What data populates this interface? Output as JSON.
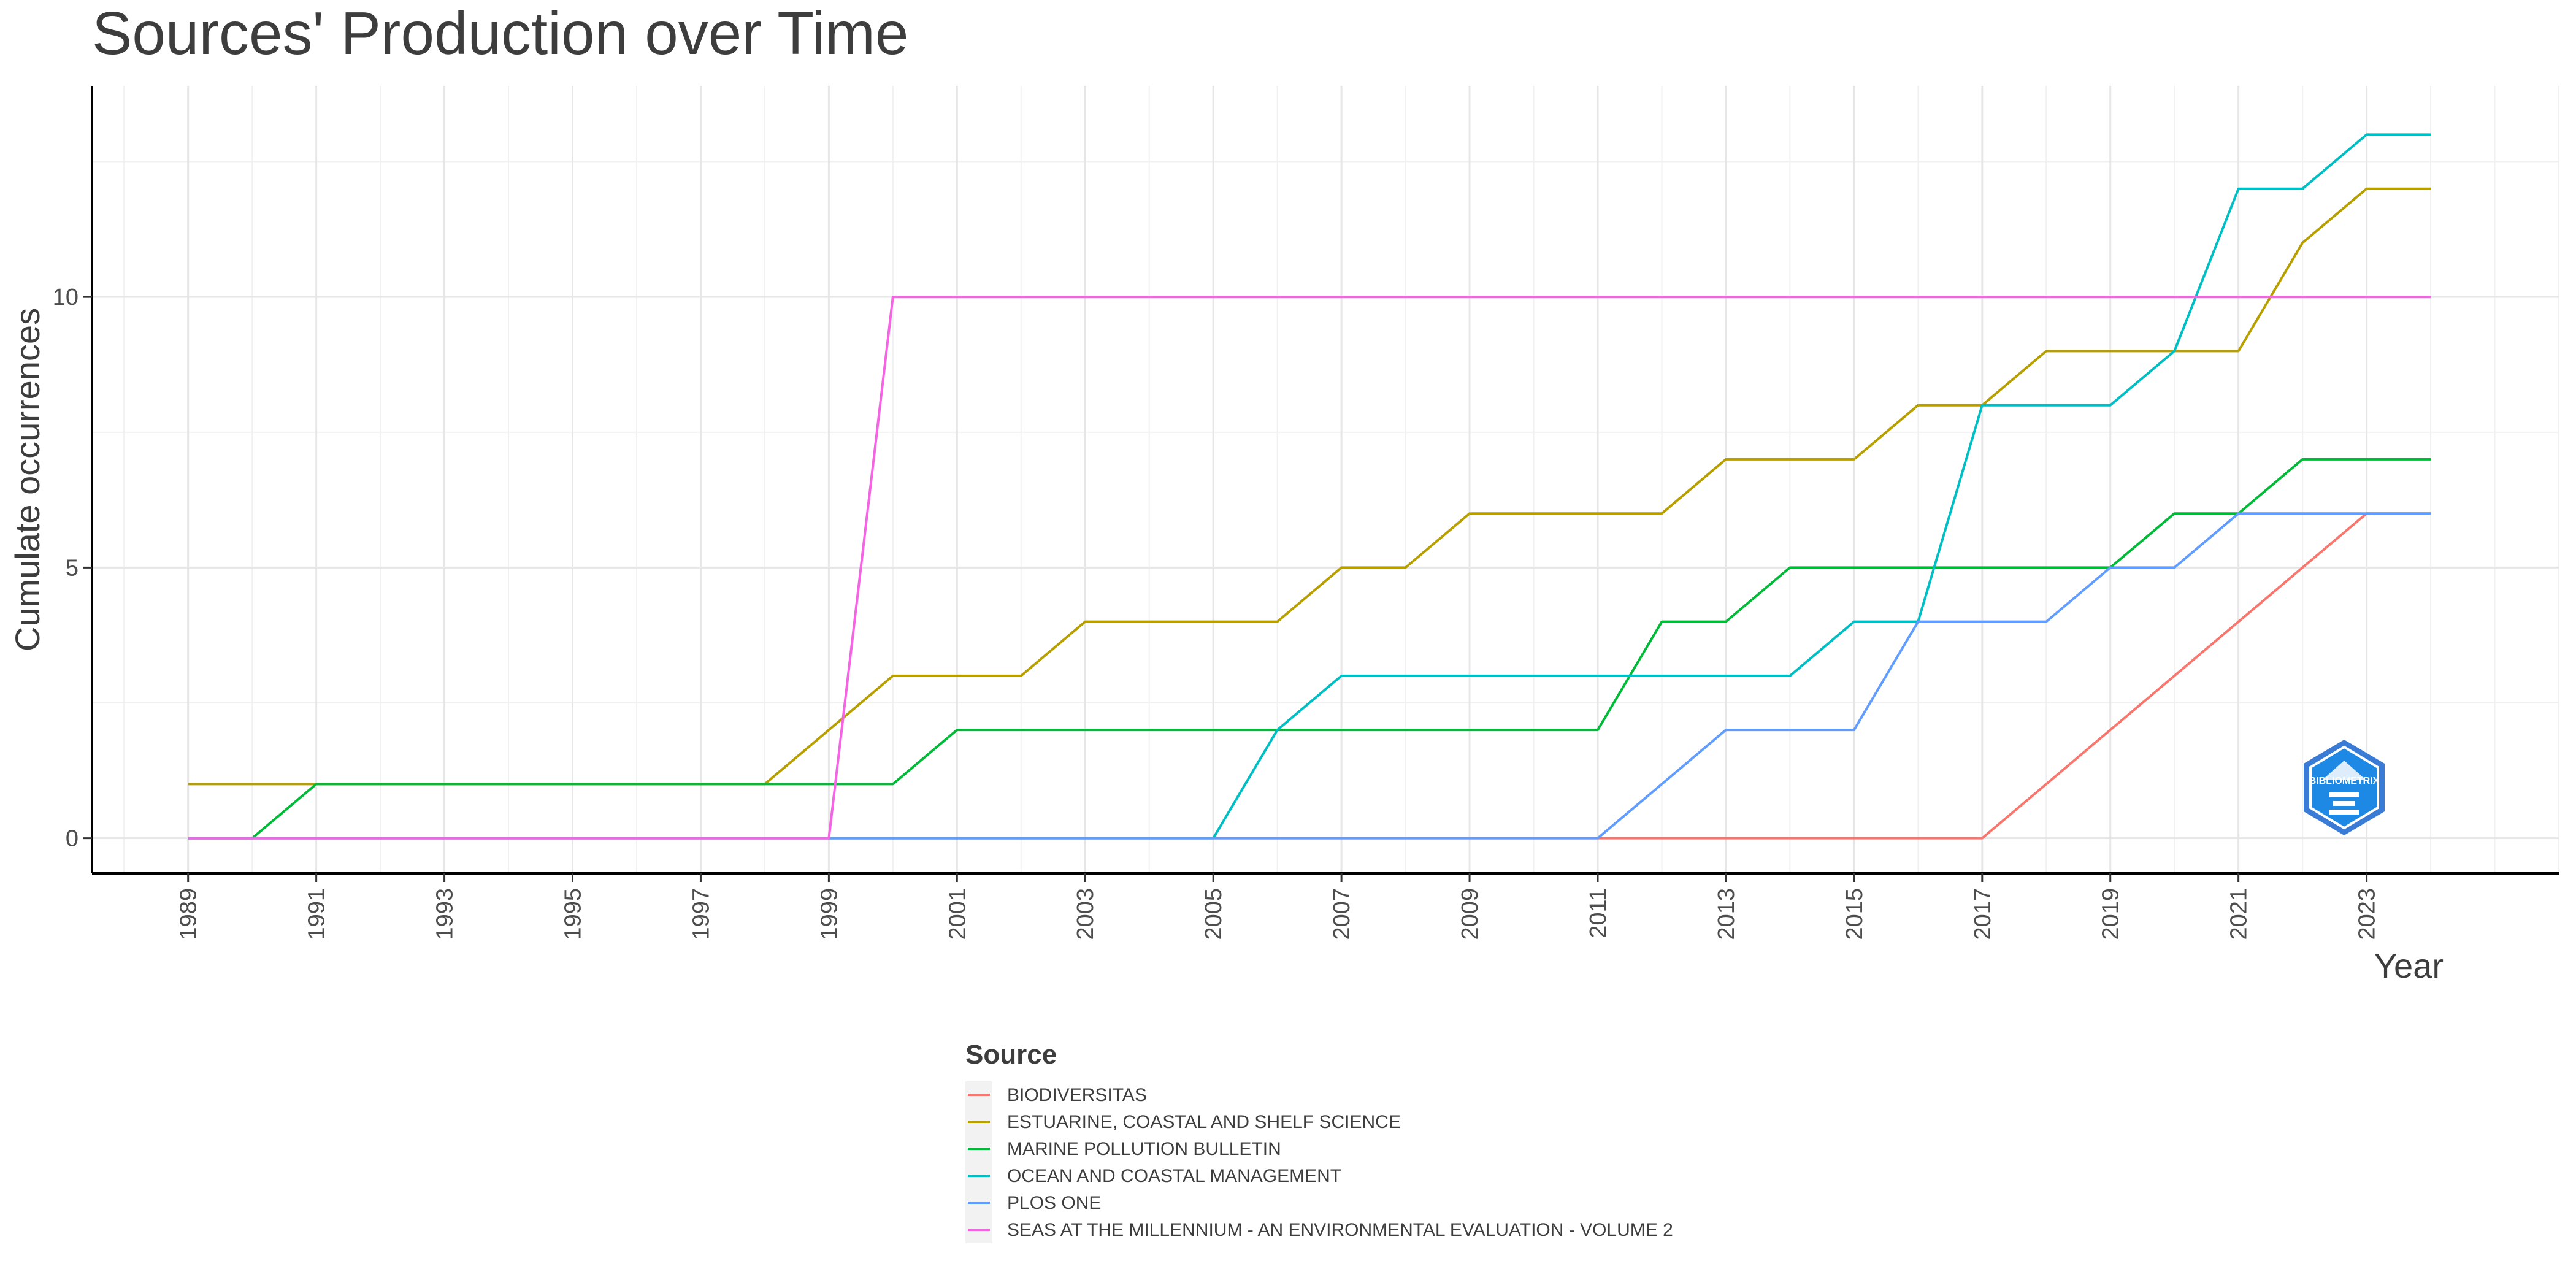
{
  "chart_data": {
    "type": "line",
    "title": "Sources' Production over Time",
    "xlabel": "Year",
    "ylabel": "Cumulate occurrences",
    "x": [
      1989,
      1990,
      1991,
      1992,
      1993,
      1994,
      1995,
      1996,
      1997,
      1998,
      1999,
      2000,
      2001,
      2002,
      2003,
      2004,
      2005,
      2006,
      2007,
      2008,
      2009,
      2010,
      2011,
      2012,
      2013,
      2014,
      2015,
      2016,
      2017,
      2018,
      2019,
      2020,
      2021,
      2022,
      2023,
      2024
    ],
    "xlim": [
      1987.5,
      2026
    ],
    "ylim": [
      -0.65,
      13.9
    ],
    "x_ticks": [
      1989,
      1991,
      1993,
      1995,
      1997,
      1999,
      2001,
      2003,
      2005,
      2007,
      2009,
      2011,
      2013,
      2015,
      2017,
      2019,
      2021,
      2023
    ],
    "y_ticks": [
      0,
      5,
      10
    ],
    "grid": true,
    "legend_title": "Source",
    "legend_position": "bottom",
    "series": [
      {
        "name": "BIODIVERSITAS",
        "color": "#F8766D",
        "values": [
          0,
          0,
          0,
          0,
          0,
          0,
          0,
          0,
          0,
          0,
          0,
          0,
          0,
          0,
          0,
          0,
          0,
          0,
          0,
          0,
          0,
          0,
          0,
          0,
          0,
          0,
          0,
          0,
          0,
          1,
          2,
          3,
          4,
          5,
          6,
          6
        ]
      },
      {
        "name": "ESTUARINE, COASTAL AND SHELF SCIENCE",
        "color": "#B79F00",
        "values": [
          1,
          1,
          1,
          1,
          1,
          1,
          1,
          1,
          1,
          1,
          2,
          3,
          3,
          3,
          4,
          4,
          4,
          4,
          5,
          5,
          6,
          6,
          6,
          6,
          7,
          7,
          7,
          8,
          8,
          9,
          9,
          9,
          9,
          11,
          12,
          12
        ]
      },
      {
        "name": "MARINE POLLUTION BULLETIN",
        "color": "#00BA38",
        "values": [
          0,
          0,
          1,
          1,
          1,
          1,
          1,
          1,
          1,
          1,
          1,
          1,
          2,
          2,
          2,
          2,
          2,
          2,
          2,
          2,
          2,
          2,
          2,
          4,
          4,
          5,
          5,
          5,
          5,
          5,
          5,
          6,
          6,
          7,
          7,
          7
        ]
      },
      {
        "name": "OCEAN AND COASTAL MANAGEMENT",
        "color": "#00BFC4",
        "values": [
          0,
          0,
          0,
          0,
          0,
          0,
          0,
          0,
          0,
          0,
          0,
          0,
          0,
          0,
          0,
          0,
          0,
          2,
          3,
          3,
          3,
          3,
          3,
          3,
          3,
          3,
          4,
          4,
          8,
          8,
          8,
          9,
          12,
          12,
          13,
          13
        ]
      },
      {
        "name": "PLOS ONE",
        "color": "#619CFF",
        "values": [
          0,
          0,
          0,
          0,
          0,
          0,
          0,
          0,
          0,
          0,
          0,
          0,
          0,
          0,
          0,
          0,
          0,
          0,
          0,
          0,
          0,
          0,
          0,
          1,
          2,
          2,
          2,
          4,
          4,
          4,
          5,
          5,
          6,
          6,
          6,
          6
        ]
      },
      {
        "name": "SEAS AT THE MILLENNIUM - AN ENVIRONMENTAL EVALUATION - VOLUME 2",
        "color": "#F564E3",
        "values": [
          0,
          0,
          0,
          0,
          0,
          0,
          0,
          0,
          0,
          0,
          0,
          10,
          10,
          10,
          10,
          10,
          10,
          10,
          10,
          10,
          10,
          10,
          10,
          10,
          10,
          10,
          10,
          10,
          10,
          10,
          10,
          10,
          10,
          10,
          10,
          10
        ]
      }
    ]
  },
  "logo": {
    "text": "BIBLIOMETRIX",
    "icon": "bibliometrix-logo"
  }
}
